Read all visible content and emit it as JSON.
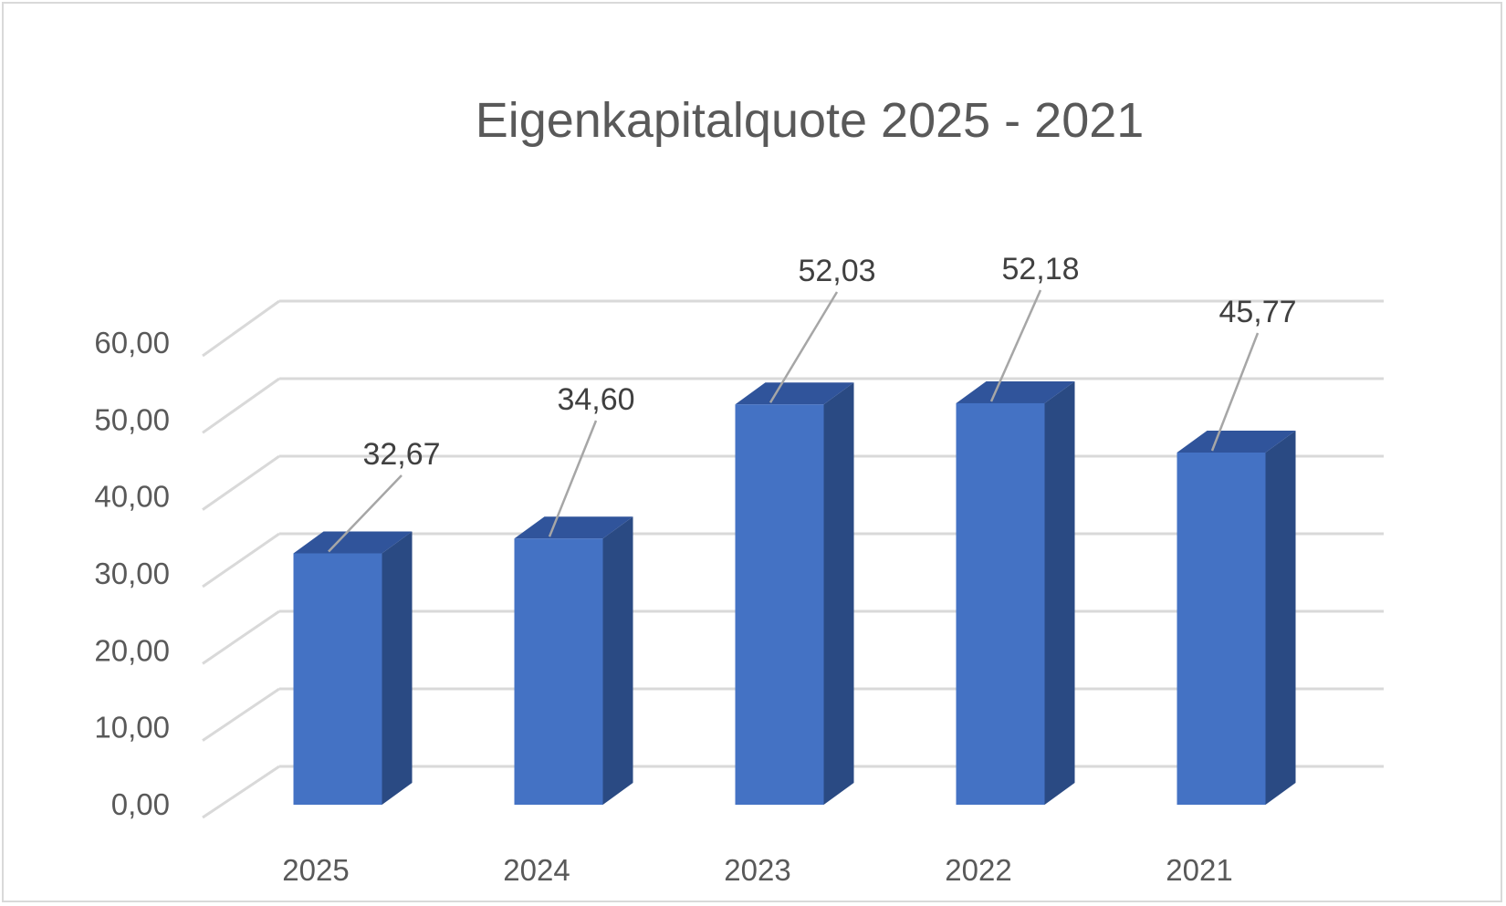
{
  "chart_data": {
    "type": "bar",
    "title": "Eigenkapitalquote 2025 - 2021",
    "xlabel": "",
    "ylabel": "",
    "categories": [
      "2025",
      "2024",
      "2023",
      "2022",
      "2021"
    ],
    "values": [
      32.67,
      34.6,
      52.03,
      52.18,
      45.77
    ],
    "data_labels": [
      "32,67",
      "34,60",
      "52,03",
      "52,18",
      "45,77"
    ],
    "ylim": [
      0,
      60
    ],
    "yticks": [
      "0,00",
      "10,00",
      "20,00",
      "30,00",
      "40,00",
      "50,00",
      "60,00"
    ],
    "grid": true,
    "legend": "none",
    "style": "3d-column",
    "colors": {
      "bar_front": "#4472c4",
      "bar_side": "#2a4a83",
      "bar_top": "#30549b",
      "grid": "#d9d9d9",
      "leader": "#a6a6a6"
    }
  }
}
